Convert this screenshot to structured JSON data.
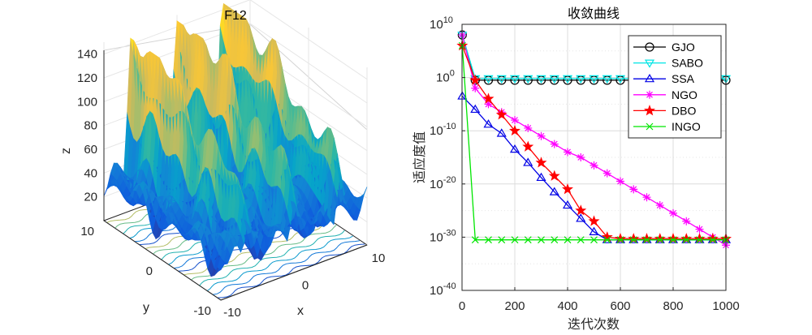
{
  "chart_data": [
    {
      "type": "surface",
      "title": "F12",
      "xlabel": "x",
      "ylabel": "y",
      "zlabel": "z",
      "x_ticks": [
        "-10",
        "0",
        "10"
      ],
      "y_ticks": [
        "-10",
        "0",
        "10"
      ],
      "z_ticks": [
        "20",
        "40",
        "60",
        "80",
        "100",
        "120",
        "140"
      ],
      "xlim": [
        -10,
        10
      ],
      "ylim": [
        -10,
        10
      ],
      "zlim": [
        0,
        150
      ],
      "colormap": [
        "#352a87",
        "#0f5cdd",
        "#1481d6",
        "#06a4ca",
        "#2eb7a4",
        "#87bf77",
        "#d1bb59",
        "#fec832",
        "#f9fb0e"
      ],
      "projection_contours": true,
      "grid": true
    },
    {
      "type": "line",
      "title": "收敛曲线",
      "xlabel": "迭代次数",
      "ylabel": "适应度值",
      "xlim": [
        0,
        1000
      ],
      "ylim": [
        -40,
        10
      ],
      "yscale": "log",
      "x_ticks": [
        "0",
        "200",
        "400",
        "600",
        "800",
        "1000"
      ],
      "y_ticks": [
        {
          "base": "10",
          "exp": "10"
        },
        {
          "base": "10",
          "exp": "0"
        },
        {
          "base": "10",
          "exp": "-10"
        },
        {
          "base": "10",
          "exp": "-20"
        },
        {
          "base": "10",
          "exp": "-30"
        },
        {
          "base": "10",
          "exp": "-40"
        }
      ],
      "y_values_are_log10": true,
      "grid": true,
      "legend_position": "top-right",
      "series": [
        {
          "name": "GJO",
          "color": "#000000",
          "marker": "circle",
          "x": [
            1,
            50,
            100,
            150,
            200,
            250,
            300,
            350,
            400,
            450,
            500,
            550,
            600,
            650,
            700,
            750,
            800,
            850,
            900,
            950,
            1000
          ],
          "y": [
            8,
            -0.5,
            -0.5,
            -0.5,
            -0.5,
            -0.5,
            -0.5,
            -0.5,
            -0.5,
            -0.5,
            -0.5,
            -0.5,
            -0.5,
            -0.5,
            -0.5,
            -0.5,
            -0.5,
            -0.5,
            -0.5,
            -0.5,
            -0.5
          ]
        },
        {
          "name": "SABO",
          "color": "#00e5e5",
          "marker": "triangle-down",
          "x": [
            1,
            50,
            100,
            150,
            200,
            250,
            300,
            350,
            400,
            450,
            500,
            550,
            600,
            650,
            700,
            750,
            800,
            850,
            900,
            950,
            1000
          ],
          "y": [
            8,
            -0.2,
            -0.2,
            -0.2,
            -0.2,
            -0.2,
            -0.2,
            -0.2,
            -0.2,
            -0.2,
            -0.2,
            -0.2,
            -0.2,
            -0.2,
            -0.2,
            -0.2,
            -0.2,
            -0.2,
            -0.2,
            -0.2,
            -0.2
          ]
        },
        {
          "name": "SSA",
          "color": "#0000e6",
          "marker": "triangle-up",
          "x": [
            1,
            50,
            100,
            150,
            200,
            250,
            300,
            350,
            400,
            450,
            500,
            550,
            600,
            650,
            700,
            750,
            800,
            850,
            900,
            950,
            1000
          ],
          "y": [
            -3.5,
            -6,
            -8.8,
            -10.5,
            -13.5,
            -16,
            -18.8,
            -21.5,
            -24,
            -26.5,
            -29,
            -30.5,
            -30.5,
            -30.5,
            -30.5,
            -30.5,
            -30.5,
            -30.5,
            -30.5,
            -30.5,
            -30.5
          ]
        },
        {
          "name": "NGO",
          "color": "#ff00ff",
          "marker": "star",
          "x": [
            1,
            50,
            100,
            150,
            200,
            250,
            300,
            350,
            400,
            450,
            500,
            550,
            600,
            650,
            700,
            750,
            800,
            850,
            900,
            950,
            1000
          ],
          "y": [
            8,
            -2,
            -5,
            -6.5,
            -8,
            -9.5,
            -11,
            -12.5,
            -14,
            -15,
            -16.5,
            -18,
            -19.5,
            -21,
            -22.5,
            -24,
            -25.5,
            -27,
            -28.5,
            -30,
            -31.5
          ]
        },
        {
          "name": "DBO",
          "color": "#ff0000",
          "marker": "pentagram",
          "x": [
            1,
            50,
            100,
            150,
            200,
            250,
            300,
            350,
            400,
            450,
            500,
            550,
            600,
            650,
            700,
            750,
            800,
            850,
            900,
            950,
            1000
          ],
          "y": [
            6,
            -0.5,
            -4,
            -7,
            -10,
            -13,
            -16,
            -18.5,
            -21,
            -25,
            -27,
            -30,
            -30.3,
            -30.3,
            -30.3,
            -30.3,
            -30.3,
            -30.3,
            -30.3,
            -30.3,
            -30.3
          ]
        },
        {
          "name": "INGO",
          "color": "#00e600",
          "marker": "cross",
          "x": [
            1,
            50,
            100,
            150,
            200,
            250,
            300,
            350,
            400,
            450,
            500,
            550,
            600,
            650,
            700,
            750,
            800,
            850,
            900,
            950,
            1000
          ],
          "y": [
            6,
            -30.5,
            -30.5,
            -30.5,
            -30.5,
            -30.5,
            -30.5,
            -30.5,
            -30.5,
            -30.5,
            -30.5,
            -30.5,
            -30.5,
            -30.5,
            -30.5,
            -30.5,
            -30.5,
            -30.5,
            -30.5,
            -30.5,
            -30.5
          ]
        }
      ]
    }
  ]
}
